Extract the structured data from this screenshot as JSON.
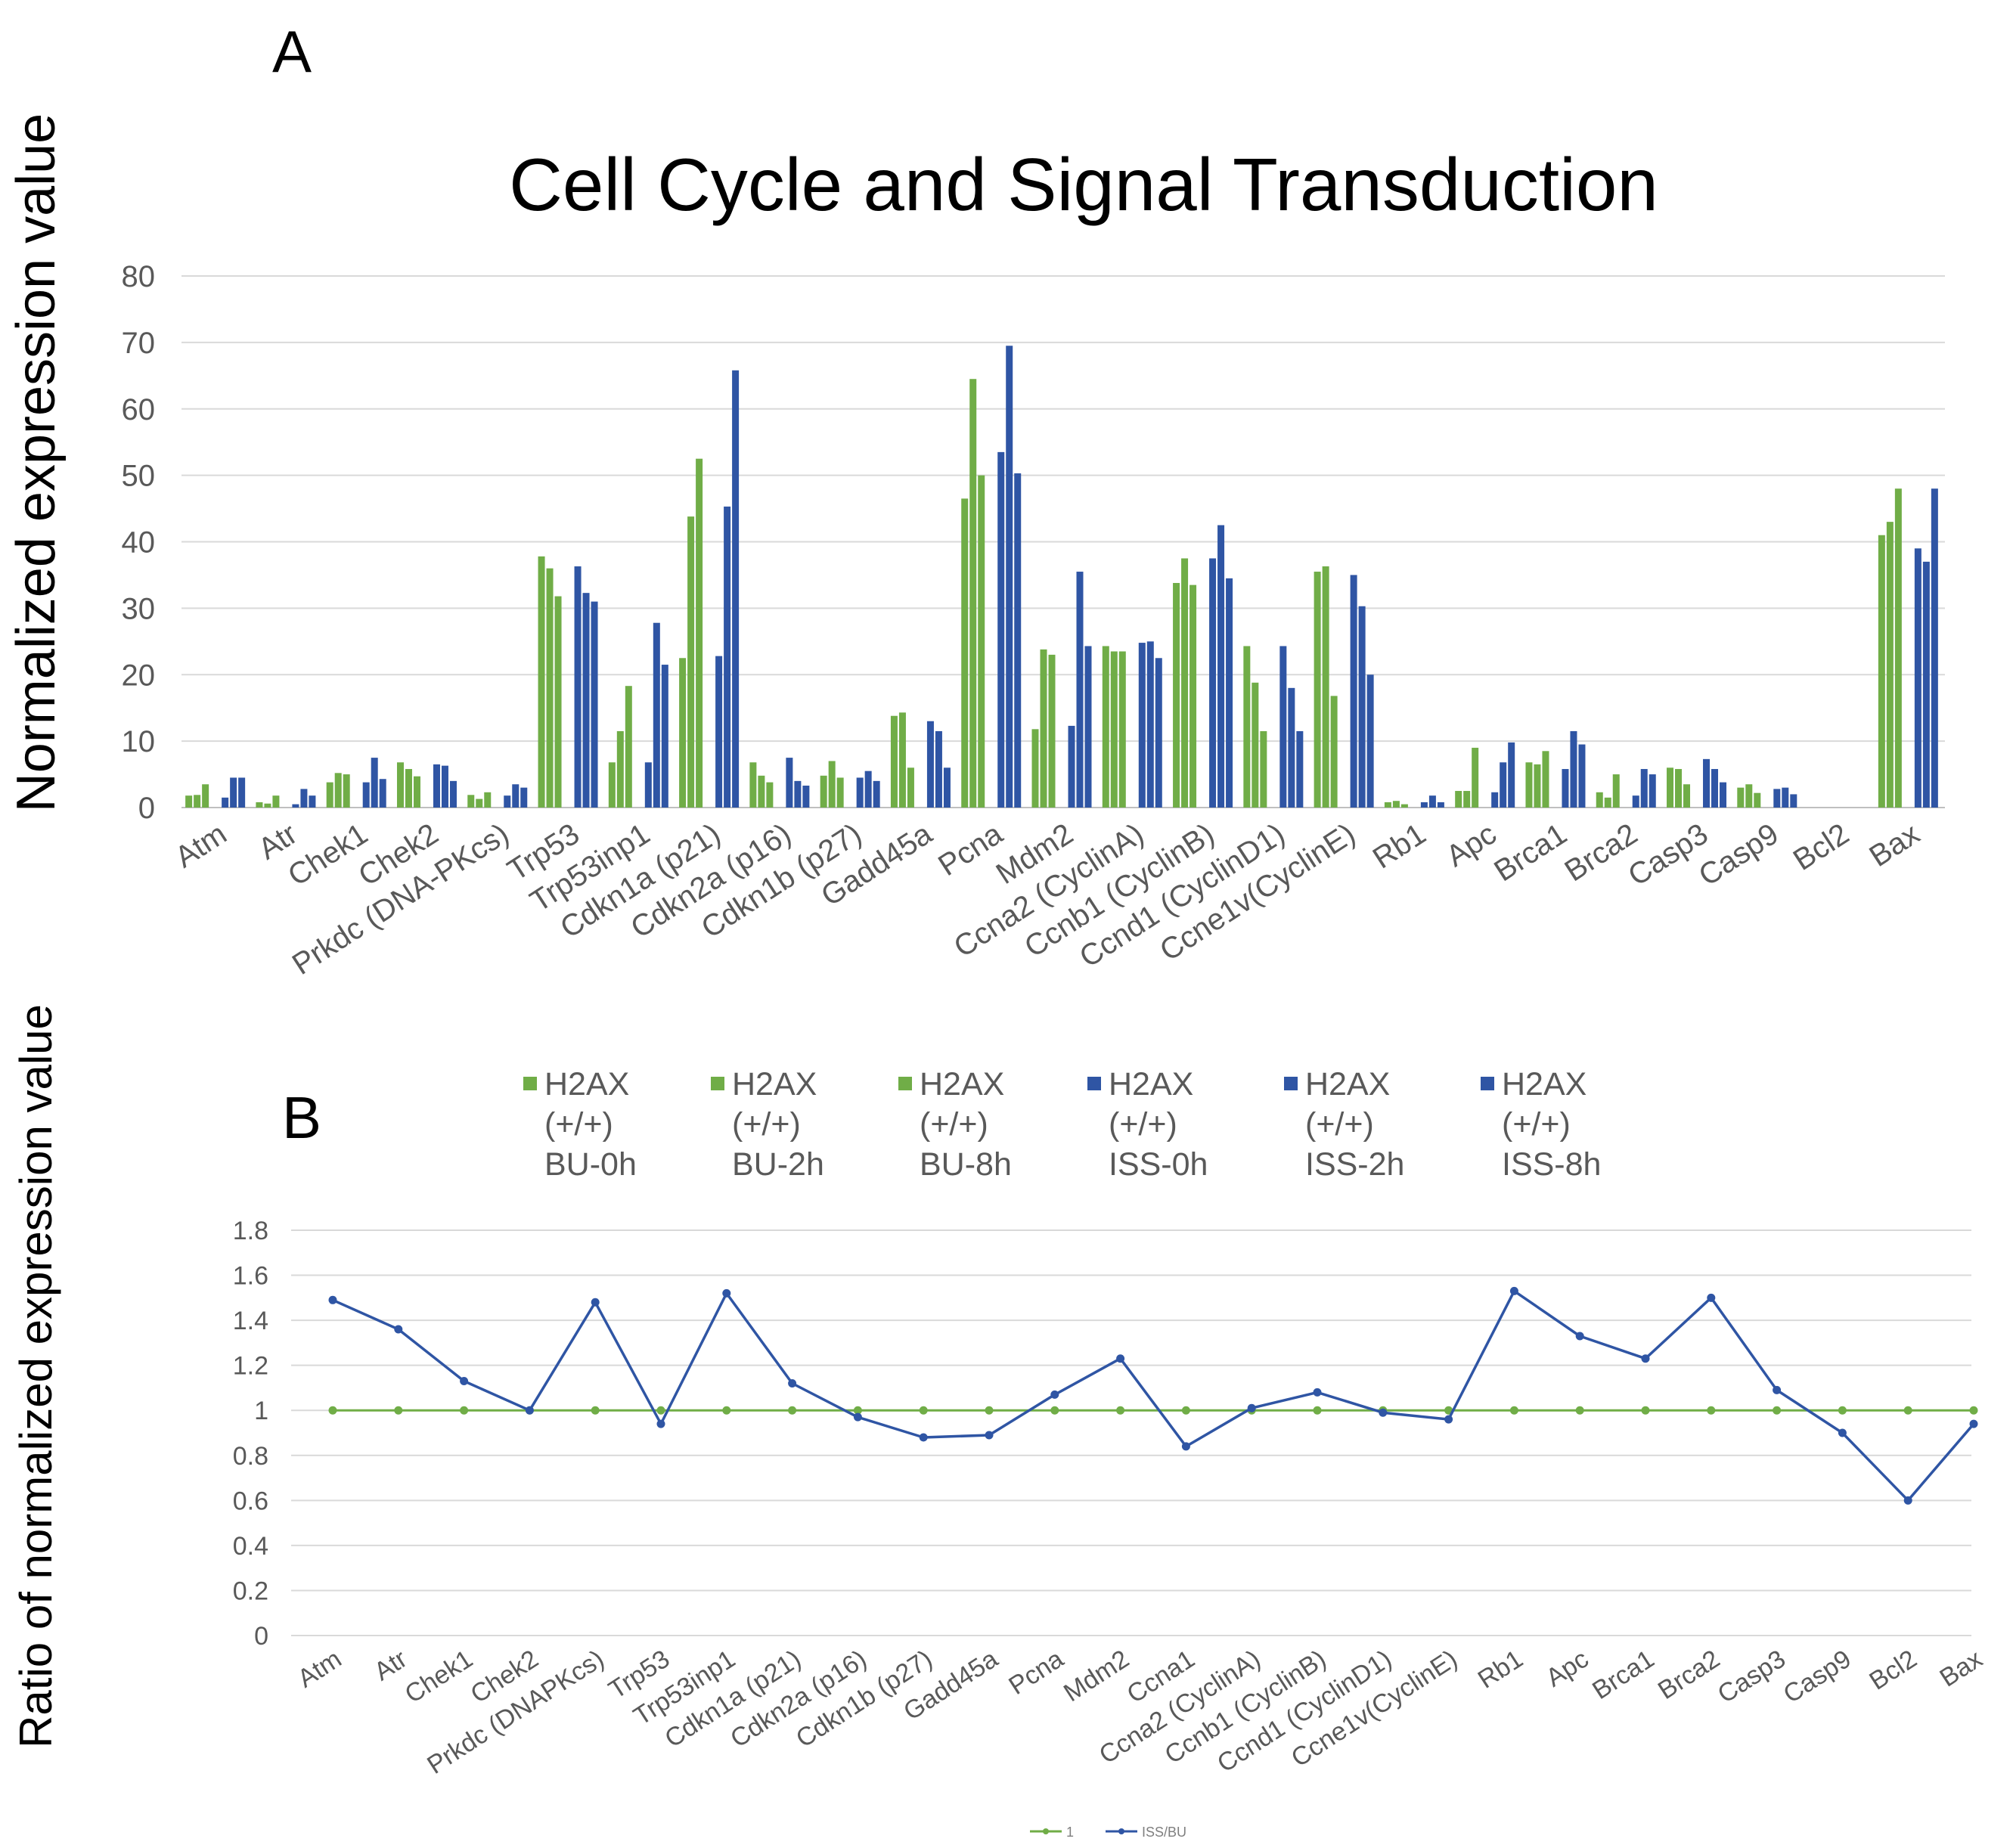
{
  "panels": {
    "a_label": "A",
    "b_label": "B"
  },
  "colors": {
    "green": "#70ad47",
    "blue": "#2f55a4",
    "grid": "#d9d9d9",
    "tick": "#595959",
    "text": "#000000"
  },
  "chart_data": [
    {
      "type": "bar",
      "panel": "A",
      "title": "Cell Cycle and Signal Transduction",
      "ylabel": "Normalized expression value",
      "xlabel": "",
      "ylim": [
        0,
        80
      ],
      "yticks": [
        "0",
        "10",
        "20",
        "30",
        "40",
        "50",
        "60",
        "70",
        "80"
      ],
      "grid": true,
      "legend_position": "bottom",
      "categories": [
        "Atm",
        "Atr",
        "Chek1",
        "Chek2",
        "Prkdc (DNA-PKcs)",
        "Trp53",
        "Trp53inp1",
        "Cdkn1a (p21)",
        "Cdkn2a (p16)",
        "Cdkn1b (p27)",
        "Gadd45a",
        "Pcna",
        "Mdm2",
        "Ccna2 (CyclinA)",
        "Ccnb1 (CyclinB)",
        "Ccnd1 (CyclinD1)",
        "Ccne1v(CyclinE)",
        "Rb1",
        "Apc",
        "Brca1",
        "Brca2",
        "Casp3",
        "Casp9",
        "Bcl2",
        "Bax"
      ],
      "series": [
        {
          "name": "H2AX (+/+) BU-0h",
          "legend_lines": [
            "H2AX",
            "(+/+)",
            "BU-0h"
          ],
          "color": "#70ad47",
          "values": [
            1.8,
            0.8,
            3.8,
            6.8,
            1.9,
            37.8,
            6.8,
            22.5,
            6.8,
            4.8,
            13.8,
            46.5,
            11.8,
            24.3,
            33.8,
            24.3,
            35.5,
            0.8,
            2.5,
            6.8,
            2.3,
            6.0,
            3.0,
            0,
            41.0
          ]
        },
        {
          "name": "H2AX (+/+) BU-2h",
          "legend_lines": [
            "H2AX",
            "(+/+)",
            "BU-2h"
          ],
          "color": "#70ad47",
          "values": [
            1.9,
            0.6,
            5.2,
            5.8,
            1.3,
            36.0,
            11.5,
            43.8,
            4.8,
            7.0,
            14.3,
            64.5,
            23.8,
            23.5,
            37.5,
            18.8,
            36.3,
            1.0,
            2.5,
            6.5,
            1.5,
            5.8,
            3.5,
            0,
            43.0
          ]
        },
        {
          "name": "H2AX (+/+) BU-8h",
          "legend_lines": [
            "H2AX",
            "(+/+)",
            "BU-8h"
          ],
          "color": "#70ad47",
          "values": [
            3.5,
            1.8,
            5.0,
            4.7,
            2.3,
            31.8,
            18.3,
            52.5,
            3.8,
            4.5,
            6.0,
            50.0,
            23.0,
            23.5,
            33.5,
            11.5,
            16.8,
            0.5,
            9.0,
            8.5,
            5.0,
            3.5,
            2.2,
            0,
            48.0
          ]
        },
        {
          "name": "H2AX (+/+) ISS-0h",
          "legend_lines": [
            "H2AX",
            "(+/+)",
            "ISS-0h"
          ],
          "color": "#2f55a4",
          "values": [
            1.5,
            0.5,
            3.8,
            6.5,
            1.8,
            36.3,
            6.8,
            22.8,
            7.5,
            4.5,
            13.0,
            53.5,
            12.3,
            24.8,
            37.5,
            24.3,
            35.0,
            0.8,
            2.3,
            5.8,
            1.8,
            7.3,
            2.8,
            0,
            39.0
          ]
        },
        {
          "name": "H2AX (+/+) ISS-2h",
          "legend_lines": [
            "H2AX",
            "(+/+)",
            "ISS-2h"
          ],
          "color": "#2f55a4",
          "values": [
            4.5,
            2.8,
            7.5,
            6.3,
            3.5,
            32.3,
            27.8,
            45.3,
            4.0,
            5.5,
            11.5,
            69.5,
            35.5,
            25.0,
            42.5,
            18.0,
            30.3,
            1.8,
            6.8,
            11.5,
            5.8,
            5.8,
            3.0,
            0,
            37.0
          ]
        },
        {
          "name": "H2AX (+/+) ISS-8h",
          "legend_lines": [
            "H2AX",
            "(+/+)",
            "ISS-8h"
          ],
          "color": "#2f55a4",
          "values": [
            4.5,
            1.8,
            4.3,
            4.0,
            3.0,
            31.0,
            21.5,
            65.8,
            3.3,
            4.0,
            6.0,
            50.3,
            24.3,
            22.5,
            34.5,
            11.5,
            20.0,
            0.8,
            9.8,
            9.5,
            5.0,
            3.8,
            2.0,
            0,
            48.0
          ]
        }
      ]
    },
    {
      "type": "line",
      "panel": "B",
      "title": "",
      "ylabel": "Ratio of normalized expression value",
      "xlabel": "",
      "ylim": [
        0,
        1.8
      ],
      "yticks": [
        "0",
        "0.2",
        "0.4",
        "0.6",
        "0.8",
        "1",
        "1.2",
        "1.4",
        "1.6",
        "1.8"
      ],
      "grid": true,
      "legend_position": "bottom",
      "categories": [
        "Atm",
        "Atr",
        "Chek1",
        "Chek2",
        "Prkdc (DNAPKcs)",
        "Trp53",
        "Trp53inp1",
        "Cdkn1a (p21)",
        "Cdkn2a (p16)",
        "Cdkn1b (p27)",
        "Gadd45a",
        "Pcna",
        "Mdm2",
        "Ccna1",
        "Ccna2 (CyclinA)",
        "Ccnb1 (CyclinB)",
        "Ccnd1 (CyclinD1)",
        "Ccne1v(CyclinE)",
        "Rb1",
        "Apc",
        "Brca1",
        "Brca2",
        "Casp3",
        "Casp9",
        "Bcl2",
        "Bax"
      ],
      "series": [
        {
          "name": "1",
          "color": "#70ad47",
          "values": [
            1,
            1,
            1,
            1,
            1,
            1,
            1,
            1,
            1,
            1,
            1,
            1,
            1,
            1,
            1,
            1,
            1,
            1,
            1,
            1,
            1,
            1,
            1,
            1,
            1,
            1
          ]
        },
        {
          "name": "ISS/BU",
          "color": "#2f55a4",
          "values": [
            1.49,
            1.36,
            1.13,
            1.0,
            1.48,
            0.94,
            1.52,
            1.12,
            0.97,
            0.88,
            0.89,
            1.07,
            1.23,
            0.84,
            1.01,
            1.08,
            0.99,
            0.96,
            1.53,
            1.33,
            1.23,
            1.5,
            1.09,
            0.9,
            0.6,
            0.94
          ]
        }
      ]
    }
  ]
}
